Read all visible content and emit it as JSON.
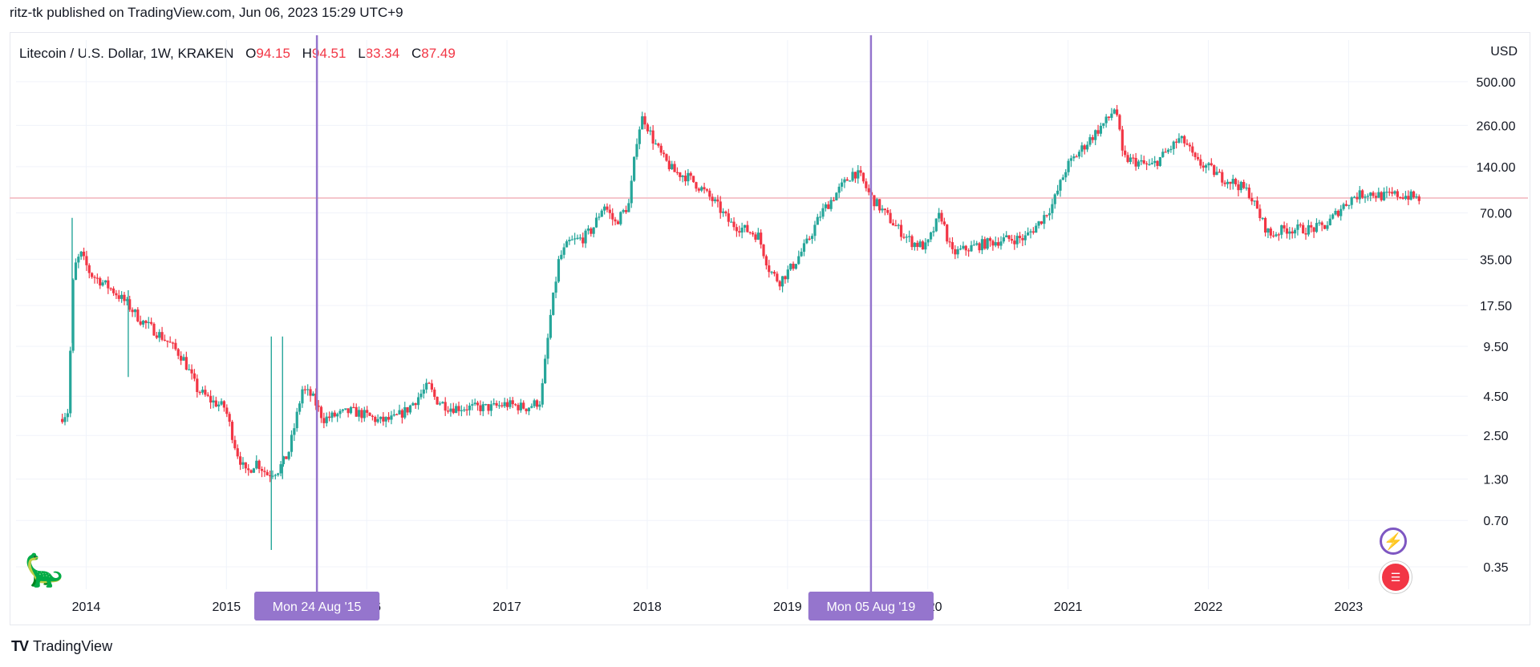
{
  "header": {
    "published_text": "ritz-tk published on TradingView.com, Jun 06, 2023 15:29 UTC+9"
  },
  "legend": {
    "symbol": "Litecoin / U.S. Dollar, 1W, KRAKEN",
    "ohlc": [
      {
        "k": "O",
        "v": "94.15"
      },
      {
        "k": "H",
        "v": "94.51"
      },
      {
        "k": "L",
        "v": "83.34"
      },
      {
        "k": "C",
        "v": "87.49"
      }
    ]
  },
  "branding": {
    "text": "TradingView",
    "logo": "TV"
  },
  "icons": {
    "bolt": "lightning-icon",
    "flag": "us-flag-icon",
    "dino": "dinosaur-icon"
  },
  "colors": {
    "up": "#26a69a",
    "down": "#f23645",
    "vline": "#9575cd",
    "hline": "#f5c6cc",
    "grid": "#f0f3fa"
  },
  "chart_data": {
    "type": "candlestick",
    "title": "Litecoin / U.S. Dollar, 1W, KRAKEN",
    "yscale": "log",
    "ylabel": "USD",
    "ylim": [
      0.25,
      650
    ],
    "xlim": [
      2013.5,
      2023.85
    ],
    "y_ticks": [
      "500.00",
      "260.00",
      "140.00",
      "70.00",
      "35.00",
      "17.50",
      "9.50",
      "4.50",
      "2.50",
      "1.30",
      "0.70",
      "0.35"
    ],
    "x_ticks": [
      "2014",
      "2015",
      "2016",
      "2017",
      "2018",
      "2019",
      "2020",
      "2021",
      "2022",
      "2023"
    ],
    "close_price_line": 87.49,
    "vertical_markers": [
      {
        "t": 2015.645,
        "label": "Mon 24 Aug '15"
      },
      {
        "t": 2019.595,
        "label": "Mon 05 Aug '19"
      }
    ],
    "price_path": [
      [
        2013.82,
        3.2
      ],
      [
        2013.88,
        3.6
      ],
      [
        2013.92,
        30
      ],
      [
        2013.97,
        38
      ],
      [
        2014.04,
        28
      ],
      [
        2014.12,
        25
      ],
      [
        2014.2,
        22
      ],
      [
        2014.3,
        18
      ],
      [
        2014.4,
        14
      ],
      [
        2014.5,
        12
      ],
      [
        2014.6,
        10
      ],
      [
        2014.7,
        8
      ],
      [
        2014.8,
        5.0
      ],
      [
        2014.9,
        4.2
      ],
      [
        2015.0,
        3.8
      ],
      [
        2015.08,
        2.0
      ],
      [
        2015.15,
        1.4
      ],
      [
        2015.22,
        1.7
      ],
      [
        2015.3,
        1.4
      ],
      [
        2015.38,
        1.5
      ],
      [
        2015.45,
        1.9
      ],
      [
        2015.5,
        3.0
      ],
      [
        2015.55,
        5.0
      ],
      [
        2015.62,
        4.5
      ],
      [
        2015.7,
        3.2
      ],
      [
        2015.8,
        3.4
      ],
      [
        2015.9,
        3.6
      ],
      [
        2016.0,
        3.4
      ],
      [
        2016.1,
        3.1
      ],
      [
        2016.2,
        3.2
      ],
      [
        2016.3,
        3.7
      ],
      [
        2016.45,
        5.3
      ],
      [
        2016.5,
        4.3
      ],
      [
        2016.6,
        3.8
      ],
      [
        2016.75,
        3.8
      ],
      [
        2016.9,
        3.8
      ],
      [
        2017.0,
        4.0
      ],
      [
        2017.15,
        3.8
      ],
      [
        2017.25,
        4.2
      ],
      [
        2017.32,
        15
      ],
      [
        2017.38,
        35
      ],
      [
        2017.45,
        45
      ],
      [
        2017.55,
        48
      ],
      [
        2017.62,
        55
      ],
      [
        2017.7,
        80
      ],
      [
        2017.78,
        60
      ],
      [
        2017.88,
        80
      ],
      [
        2017.94,
        230
      ],
      [
        2017.98,
        300
      ],
      [
        2018.05,
        210
      ],
      [
        2018.12,
        160
      ],
      [
        2018.2,
        130
      ],
      [
        2018.3,
        120
      ],
      [
        2018.4,
        100
      ],
      [
        2018.5,
        80
      ],
      [
        2018.6,
        60
      ],
      [
        2018.7,
        55
      ],
      [
        2018.8,
        50
      ],
      [
        2018.88,
        30
      ],
      [
        2018.95,
        25
      ],
      [
        2019.05,
        32
      ],
      [
        2019.15,
        45
      ],
      [
        2019.25,
        70
      ],
      [
        2019.38,
        100
      ],
      [
        2019.48,
        130
      ],
      [
        2019.53,
        120
      ],
      [
        2019.6,
        90
      ],
      [
        2019.7,
        70
      ],
      [
        2019.8,
        55
      ],
      [
        2019.9,
        45
      ],
      [
        2020.0,
        42
      ],
      [
        2020.1,
        70
      ],
      [
        2020.18,
        38
      ],
      [
        2020.25,
        40
      ],
      [
        2020.4,
        44
      ],
      [
        2020.55,
        47
      ],
      [
        2020.7,
        48
      ],
      [
        2020.8,
        60
      ],
      [
        2020.9,
        80
      ],
      [
        2021.0,
        140
      ],
      [
        2021.1,
        180
      ],
      [
        2021.2,
        230
      ],
      [
        2021.3,
        290
      ],
      [
        2021.35,
        350
      ],
      [
        2021.4,
        160
      ],
      [
        2021.5,
        150
      ],
      [
        2021.6,
        140
      ],
      [
        2021.7,
        170
      ],
      [
        2021.8,
        210
      ],
      [
        2021.85,
        200
      ],
      [
        2021.92,
        150
      ],
      [
        2022.0,
        140
      ],
      [
        2022.1,
        120
      ],
      [
        2022.2,
        110
      ],
      [
        2022.3,
        95
      ],
      [
        2022.4,
        60
      ],
      [
        2022.45,
        50
      ],
      [
        2022.55,
        55
      ],
      [
        2022.65,
        55
      ],
      [
        2022.75,
        55
      ],
      [
        2022.85,
        58
      ],
      [
        2022.95,
        75
      ],
      [
        2023.05,
        90
      ],
      [
        2023.15,
        95
      ],
      [
        2023.25,
        90
      ],
      [
        2023.35,
        92
      ],
      [
        2023.45,
        90
      ],
      [
        2023.5,
        87
      ]
    ]
  }
}
